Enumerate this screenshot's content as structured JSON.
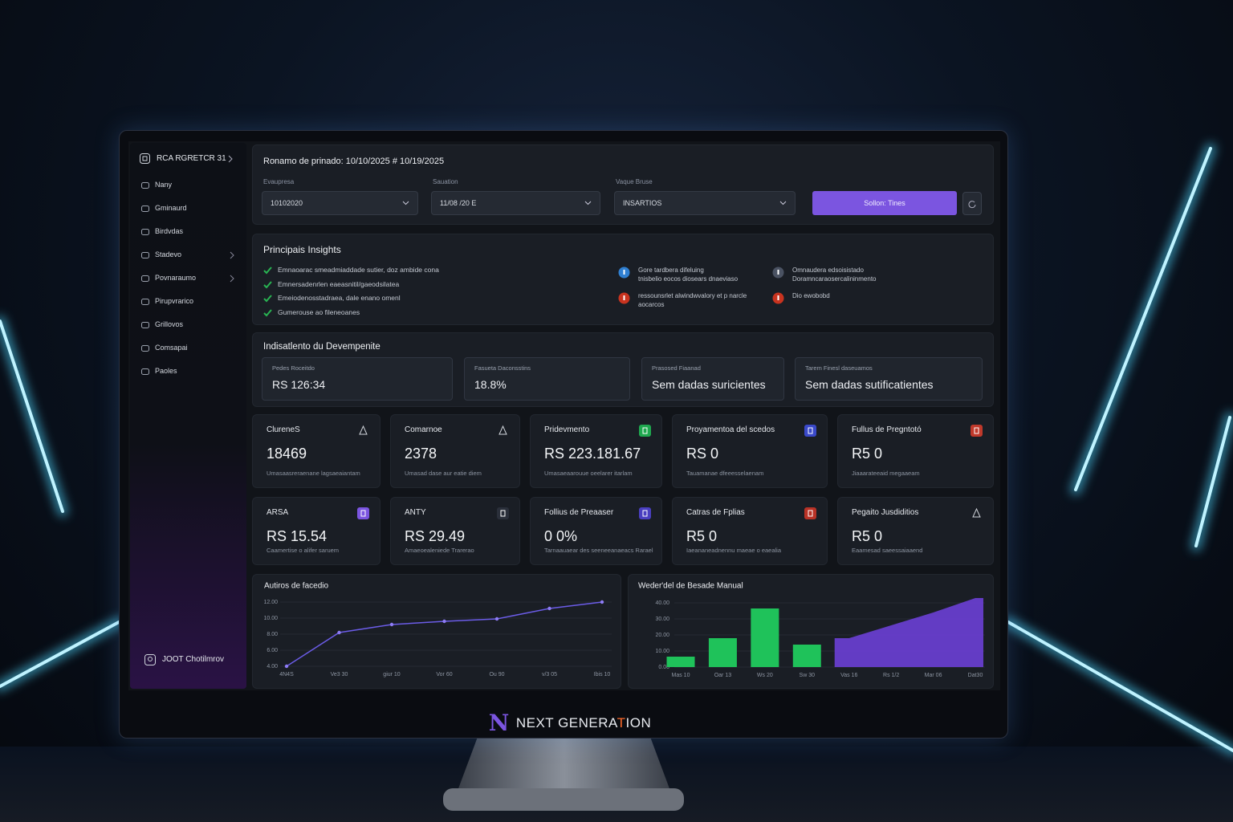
{
  "brand": {
    "logo": "N",
    "name_start": "NEXT GENERA",
    "name_accent": "T",
    "name_end": "ION"
  },
  "sidebar": {
    "top": "RCA RGRETCR 31",
    "items": [
      "Nany",
      "Gminaurd",
      "Birdvdas",
      "Stadevo",
      "Povnaraumo",
      "Pirupvrarico",
      "Grillovos",
      "Comsapai",
      "Paoles"
    ],
    "user": "JOOT Chotilmrov"
  },
  "filters": {
    "title": "Ronamo de prinado:  10/10/2025 # 10/19/2025",
    "fields": [
      {
        "label": "Evaupresa",
        "value": "10102020"
      },
      {
        "label": "Sauation",
        "value": "11/08 /20 E"
      },
      {
        "label": "Vaque Bruse",
        "value": "INSARTIOS"
      }
    ],
    "button": "Sollon: Tines"
  },
  "insights": {
    "title": "Principais Insights",
    "checks": [
      "Emnaoarac smeadmiaddade sutier, doz ambide cona",
      "Emnersadenrlen eaeasnitil/gaeodsilatea",
      "Emeiodenosstadraea, dale enano omenl",
      "Gumerouse ao fileneoanes"
    ],
    "notes": [
      {
        "lines": [
          "Gore tardbera difeluing",
          "tnisbelio eocos diosears dnaeviaso"
        ],
        "color": "#2f7fd1"
      },
      {
        "lines": [
          "Omnaudera edsoisistado",
          "Doramncaraosercalininmento"
        ],
        "color": "#4a5262"
      },
      {
        "lines": [
          "ressounsrlet alwindwvalory et p narcle",
          "aocarcos"
        ],
        "color": "#c8331f"
      },
      {
        "lines": [
          "Dio ewobobd"
        ],
        "color": "#c8331f"
      }
    ]
  },
  "performance": {
    "title": "Indisatlento du Devempenite",
    "boxes": [
      {
        "label": "Pedes Roceitdo",
        "value": "RS 126:34"
      },
      {
        "label": "Fasueta Daconsstins",
        "value": "18.8%"
      },
      {
        "label": "Prasosed Fiaanad",
        "value": "Sem dadas suricientes"
      },
      {
        "label": "Tarem Finesl daseuamos",
        "value": "Sem dadas sutificatientes"
      }
    ]
  },
  "kpis": [
    {
      "title": "ClureneS",
      "value": "18469",
      "note": "Umasaasreraenane lagsaeaiantam",
      "icon_color": null
    },
    {
      "title": "Comarnoe",
      "value": "2378",
      "note": "Umasad dase aur eatie diem",
      "icon_color": null
    },
    {
      "title": "Pridevmento",
      "value": "RS 223.181.67",
      "note": "Umasaeaarouue oeelarer itarlam",
      "icon_color": "#1fa84f"
    },
    {
      "title": "Proyamentoa del scedos",
      "value": "RS 0",
      "note": "Tauamanae  dfeeesselaenam",
      "icon_color": "#3a49c9"
    },
    {
      "title": "Fullus de Pregntotó",
      "value": "R5 0",
      "note": "Jiaaarateeaid  megaaeam",
      "icon_color": "#c0392b"
    },
    {
      "title": "ARSA",
      "value": "RS 15.54",
      "note": "Caamertise o alifer saruem",
      "icon_color": "#7b55e0"
    },
    {
      "title": "ANTY",
      "value": "RS 29.49",
      "note": "Amaeoealeniede Trarerao",
      "icon_color": "#2a2f3a"
    },
    {
      "title": "Follius de Preaaser",
      "value": "0 0%",
      "note": "Tarnaauaear des seeneeanaeacs Rarael",
      "icon_color": "#4a3fc0"
    },
    {
      "title": "Catras de Fplias",
      "value": "R5 0",
      "note": "Iaeananeadnennu maeae o eaealia",
      "icon_color": "#b83226"
    },
    {
      "title": "Pegaito Jusdiditios",
      "value": "R5 0",
      "note": "Eaamesad saeessaiaaend",
      "icon_color": null
    }
  ],
  "chart_data": [
    {
      "type": "line",
      "title": "Autiros de facedio",
      "categories": [
        "4N4S",
        "Ve3 30",
        "giur 10",
        "Vor 60",
        "Ou 90",
        "v/3 05",
        "Ibis 10"
      ],
      "values": [
        4,
        8.2,
        9.2,
        9.6,
        9.9,
        11.2,
        12
      ],
      "color": "#6b5ce7",
      "ylim": [
        4,
        12
      ],
      "yticks": [
        {
          "value": 4,
          "label": "4.00"
        },
        {
          "value": 6,
          "label": "6.00"
        },
        {
          "value": 8,
          "label": "8.00"
        },
        {
          "value": 10,
          "label": "10.00"
        },
        {
          "value": 12,
          "label": "12.00"
        }
      ],
      "grid": true
    },
    {
      "type": "bar-area",
      "title": "Weder'del de Besade Manual",
      "categories": [
        "Mas 10",
        "Oar 13",
        "Ws 20",
        "Sw 30",
        "Vas 16",
        "Rs 1/2",
        "Mar 06",
        "Dat30"
      ],
      "series": [
        {
          "type": "bar",
          "color": "#1fc25a",
          "values": [
            6.5,
            18,
            36.5,
            14,
            null,
            null,
            null,
            null
          ]
        },
        {
          "type": "area",
          "color": "#6c3fd6",
          "values": [
            null,
            null,
            null,
            null,
            18,
            26,
            34,
            43
          ]
        }
      ],
      "ylim": [
        0,
        45
      ],
      "yticks": [
        {
          "value": 0,
          "label": "0.00"
        },
        {
          "value": 10,
          "label": "10.00"
        },
        {
          "value": 20,
          "label": "20.00"
        },
        {
          "value": 30,
          "label": "30.00"
        },
        {
          "value": 40,
          "label": "40.00"
        }
      ],
      "grid": true
    }
  ]
}
